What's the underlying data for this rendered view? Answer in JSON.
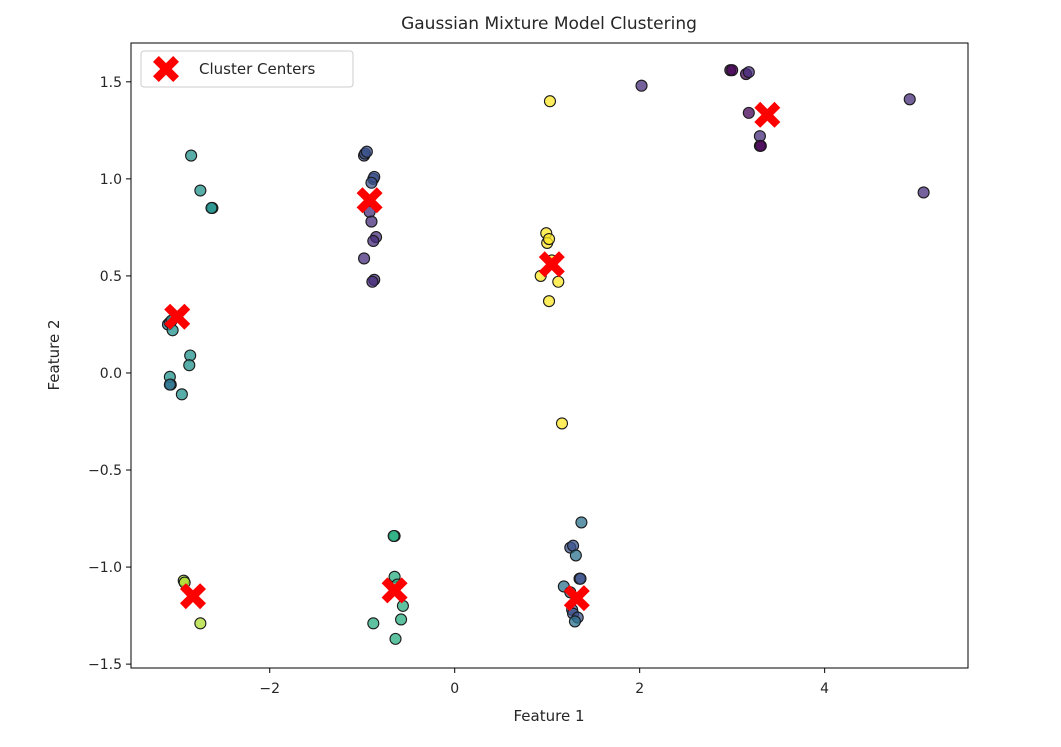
{
  "chart_data": {
    "type": "scatter",
    "title": "Gaussian Mixture Model Clustering",
    "xlabel": "Feature 1",
    "ylabel": "Feature 2",
    "xlim": [
      -3.5,
      5.55
    ],
    "ylim": [
      -1.52,
      1.7
    ],
    "xticks": [
      -2,
      0,
      2,
      4
    ],
    "yticks": [
      -1.5,
      -1.0,
      -0.5,
      0.0,
      0.5,
      1.0,
      1.5
    ],
    "xtick_labels": [
      "−2",
      "0",
      "2",
      "4"
    ],
    "ytick_labels": [
      "−1.5",
      "−1.0",
      "−0.5",
      "0.0",
      "0.5",
      "1.0",
      "1.5"
    ],
    "grid": false,
    "legend": {
      "position": "top-left",
      "entries": [
        "Cluster Centers"
      ]
    },
    "colormap": "viridis",
    "cluster_colors": [
      "#440154",
      "#472d7b",
      "#3b528b",
      "#2c728e",
      "#21918c",
      "#28ae80",
      "#5ec962",
      "#addc30",
      "#fde725"
    ],
    "points": [
      {
        "x": 2.02,
        "y": 1.48,
        "c": 1
      },
      {
        "x": 2.98,
        "y": 1.56,
        "c": 0
      },
      {
        "x": 3.0,
        "y": 1.56,
        "c": 0
      },
      {
        "x": 3.15,
        "y": 1.54,
        "c": 0
      },
      {
        "x": 3.18,
        "y": 1.55,
        "c": 1
      },
      {
        "x": 3.18,
        "y": 1.34,
        "c": 0
      },
      {
        "x": 3.3,
        "y": 1.22,
        "c": 1
      },
      {
        "x": 3.3,
        "y": 1.17,
        "c": 0
      },
      {
        "x": 3.31,
        "y": 1.17,
        "c": 0
      },
      {
        "x": 4.92,
        "y": 1.41,
        "c": 1
      },
      {
        "x": 5.07,
        "y": 0.93,
        "c": 1
      },
      {
        "x": 1.03,
        "y": 1.4,
        "c": 8
      },
      {
        "x": 0.99,
        "y": 0.72,
        "c": 8
      },
      {
        "x": 1.0,
        "y": 0.67,
        "c": 8
      },
      {
        "x": 1.02,
        "y": 0.69,
        "c": 8
      },
      {
        "x": 1.05,
        "y": 0.58,
        "c": 8
      },
      {
        "x": 0.93,
        "y": 0.5,
        "c": 8
      },
      {
        "x": 1.12,
        "y": 0.47,
        "c": 8
      },
      {
        "x": 1.02,
        "y": 0.37,
        "c": 8
      },
      {
        "x": 1.16,
        "y": -0.26,
        "c": 8
      },
      {
        "x": -0.98,
        "y": 1.12,
        "c": 2
      },
      {
        "x": -0.97,
        "y": 1.13,
        "c": 2
      },
      {
        "x": -0.95,
        "y": 1.14,
        "c": 2
      },
      {
        "x": -0.88,
        "y": 1.0,
        "c": 2
      },
      {
        "x": -0.87,
        "y": 1.01,
        "c": 2
      },
      {
        "x": -0.9,
        "y": 0.98,
        "c": 2
      },
      {
        "x": -0.92,
        "y": 0.83,
        "c": 1
      },
      {
        "x": -0.9,
        "y": 0.78,
        "c": 1
      },
      {
        "x": -0.85,
        "y": 0.7,
        "c": 1
      },
      {
        "x": -0.88,
        "y": 0.68,
        "c": 1
      },
      {
        "x": -0.98,
        "y": 0.59,
        "c": 1
      },
      {
        "x": -0.87,
        "y": 0.48,
        "c": 1
      },
      {
        "x": -0.89,
        "y": 0.47,
        "c": 1
      },
      {
        "x": -2.85,
        "y": 1.12,
        "c": 4
      },
      {
        "x": -2.75,
        "y": 0.94,
        "c": 4
      },
      {
        "x": -2.62,
        "y": 0.85,
        "c": 4
      },
      {
        "x": -2.63,
        "y": 0.85,
        "c": 4
      },
      {
        "x": -3.1,
        "y": 0.25,
        "c": 3
      },
      {
        "x": -3.08,
        "y": 0.26,
        "c": 3
      },
      {
        "x": -3.05,
        "y": 0.22,
        "c": 4
      },
      {
        "x": -3.06,
        "y": 0.27,
        "c": 4
      },
      {
        "x": -2.86,
        "y": 0.09,
        "c": 4
      },
      {
        "x": -2.87,
        "y": 0.04,
        "c": 4
      },
      {
        "x": -3.08,
        "y": -0.02,
        "c": 4
      },
      {
        "x": -3.07,
        "y": -0.06,
        "c": 3
      },
      {
        "x": -3.08,
        "y": -0.06,
        "c": 3
      },
      {
        "x": -2.95,
        "y": -0.11,
        "c": 4
      },
      {
        "x": -0.65,
        "y": -0.84,
        "c": 5
      },
      {
        "x": -0.66,
        "y": -0.84,
        "c": 5
      },
      {
        "x": -0.65,
        "y": -1.05,
        "c": 5
      },
      {
        "x": -0.62,
        "y": -1.09,
        "c": 5
      },
      {
        "x": -0.56,
        "y": -1.2,
        "c": 5
      },
      {
        "x": -0.58,
        "y": -1.27,
        "c": 5
      },
      {
        "x": -0.88,
        "y": -1.29,
        "c": 5
      },
      {
        "x": -0.64,
        "y": -1.37,
        "c": 5
      },
      {
        "x": 1.37,
        "y": -0.77,
        "c": 3
      },
      {
        "x": 1.25,
        "y": -0.9,
        "c": 2
      },
      {
        "x": 1.28,
        "y": -0.89,
        "c": 2
      },
      {
        "x": 1.31,
        "y": -0.94,
        "c": 3
      },
      {
        "x": 1.35,
        "y": -1.06,
        "c": 2
      },
      {
        "x": 1.36,
        "y": -1.06,
        "c": 2
      },
      {
        "x": 1.18,
        "y": -1.1,
        "c": 3
      },
      {
        "x": 1.25,
        "y": -1.13,
        "c": 3
      },
      {
        "x": 1.27,
        "y": -1.22,
        "c": 2
      },
      {
        "x": 1.28,
        "y": -1.24,
        "c": 2
      },
      {
        "x": 1.33,
        "y": -1.26,
        "c": 2
      },
      {
        "x": 1.3,
        "y": -1.28,
        "c": 3
      },
      {
        "x": -2.93,
        "y": -1.07,
        "c": 7
      },
      {
        "x": -2.92,
        "y": -1.08,
        "c": 7
      },
      {
        "x": -2.75,
        "y": -1.29,
        "c": 7
      }
    ],
    "centers": [
      {
        "x": 3.38,
        "y": 1.33
      },
      {
        "x": -0.92,
        "y": 0.89
      },
      {
        "x": 1.05,
        "y": 0.56
      },
      {
        "x": -3.0,
        "y": 0.29
      },
      {
        "x": -2.83,
        "y": -1.15
      },
      {
        "x": -0.65,
        "y": -1.12
      },
      {
        "x": 1.32,
        "y": -1.16
      }
    ],
    "center_color": "#ff0000",
    "center_marker": "X"
  }
}
